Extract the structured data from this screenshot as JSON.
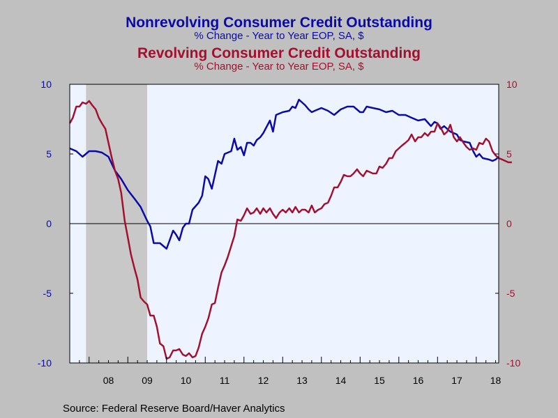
{
  "titles": {
    "series1_title": "Nonrevolving Consumer Credit Outstanding",
    "series1_subtitle": "% Change - Year to Year    EOP, SA, $",
    "series2_title": "Revolving Consumer Credit Outstanding",
    "series2_subtitle": "% Change - Year to Year    EOP, SA, $"
  },
  "source": "Source:  Federal Reserve Board/Haver Analytics",
  "colors": {
    "nonrevolving": "#0a0aa8",
    "revolving": "#a3102f",
    "plot_background": "#eef4ff",
    "recession_shade": "#c8c8c8",
    "page_background": "#c0c0c0"
  },
  "chart_data": {
    "type": "line",
    "x_unit": "year (decimal)",
    "xlim": [
      2007.5,
      2018.58
    ],
    "ylim": [
      -10,
      10
    ],
    "left_yticks": [
      "10",
      "5",
      "0",
      "-5",
      "-10"
    ],
    "right_yticks": [
      "10",
      "5",
      "0",
      "-5",
      "-10"
    ],
    "x_tick_labels": [
      "08",
      "09",
      "10",
      "11",
      "12",
      "13",
      "14",
      "15",
      "16",
      "17",
      "18"
    ],
    "x_tick_positions": [
      2008.5,
      2009.5,
      2010.5,
      2011.5,
      2012.5,
      2013.5,
      2014.5,
      2015.5,
      2016.5,
      2017.5,
      2018.5
    ],
    "recession": [
      2007.92,
      2009.5
    ],
    "zero_line": true,
    "series": [
      {
        "key": "nonrevolving",
        "axis": "left",
        "points": [
          [
            2007.5,
            5.4
          ],
          [
            2007.67,
            5.2
          ],
          [
            2007.83,
            4.8
          ],
          [
            2008.0,
            5.2
          ],
          [
            2008.17,
            5.2
          ],
          [
            2008.33,
            5.1
          ],
          [
            2008.5,
            4.8
          ],
          [
            2008.67,
            3.8
          ],
          [
            2008.83,
            3.2
          ],
          [
            2009.0,
            2.4
          ],
          [
            2009.17,
            1.8
          ],
          [
            2009.33,
            1.2
          ],
          [
            2009.5,
            0.2
          ],
          [
            2009.58,
            -0.2
          ],
          [
            2009.67,
            -1.4
          ],
          [
            2009.83,
            -1.4
          ],
          [
            2010.0,
            -1.8
          ],
          [
            2010.08,
            -1.2
          ],
          [
            2010.17,
            -0.5
          ],
          [
            2010.25,
            -0.8
          ],
          [
            2010.33,
            -1.2
          ],
          [
            2010.42,
            -0.3
          ],
          [
            2010.5,
            0.0
          ],
          [
            2010.58,
            0.0
          ],
          [
            2010.67,
            1.0
          ],
          [
            2010.83,
            1.5
          ],
          [
            2010.92,
            2.0
          ],
          [
            2011.0,
            3.4
          ],
          [
            2011.08,
            3.2
          ],
          [
            2011.17,
            2.5
          ],
          [
            2011.33,
            4.5
          ],
          [
            2011.42,
            4.3
          ],
          [
            2011.5,
            5.0
          ],
          [
            2011.67,
            5.2
          ],
          [
            2011.75,
            6.1
          ],
          [
            2011.83,
            5.3
          ],
          [
            2011.92,
            5.5
          ],
          [
            2012.0,
            4.9
          ],
          [
            2012.08,
            5.8
          ],
          [
            2012.17,
            5.8
          ],
          [
            2012.25,
            5.6
          ],
          [
            2012.33,
            6.0
          ],
          [
            2012.42,
            6.2
          ],
          [
            2012.5,
            6.5
          ],
          [
            2012.67,
            7.4
          ],
          [
            2012.75,
            6.6
          ],
          [
            2012.83,
            7.8
          ],
          [
            2013.0,
            8.0
          ],
          [
            2013.17,
            8.1
          ],
          [
            2013.25,
            8.4
          ],
          [
            2013.33,
            8.3
          ],
          [
            2013.42,
            8.9
          ],
          [
            2013.58,
            8.5
          ],
          [
            2013.67,
            8.2
          ],
          [
            2013.75,
            8.0
          ],
          [
            2013.83,
            8.1
          ],
          [
            2014.0,
            8.3
          ],
          [
            2014.17,
            8.1
          ],
          [
            2014.33,
            7.8
          ],
          [
            2014.5,
            8.2
          ],
          [
            2014.67,
            8.4
          ],
          [
            2014.83,
            8.4
          ],
          [
            2015.0,
            8.0
          ],
          [
            2015.08,
            8.0
          ],
          [
            2015.17,
            8.4
          ],
          [
            2015.33,
            8.3
          ],
          [
            2015.5,
            8.2
          ],
          [
            2015.67,
            8.0
          ],
          [
            2015.83,
            8.1
          ],
          [
            2016.0,
            7.8
          ],
          [
            2016.17,
            7.8
          ],
          [
            2016.33,
            7.6
          ],
          [
            2016.5,
            7.4
          ],
          [
            2016.67,
            7.5
          ],
          [
            2016.83,
            7.0
          ],
          [
            2016.92,
            7.3
          ],
          [
            2017.0,
            7.2
          ],
          [
            2017.08,
            6.8
          ],
          [
            2017.17,
            7.0
          ],
          [
            2017.33,
            6.6
          ],
          [
            2017.5,
            6.4
          ],
          [
            2017.58,
            6.0
          ],
          [
            2017.67,
            5.9
          ],
          [
            2017.83,
            5.8
          ],
          [
            2017.92,
            5.2
          ],
          [
            2018.0,
            4.8
          ],
          [
            2018.08,
            5.0
          ],
          [
            2018.17,
            4.7
          ],
          [
            2018.33,
            4.6
          ],
          [
            2018.42,
            4.5
          ],
          [
            2018.5,
            4.6
          ],
          [
            2018.58,
            4.8
          ]
        ]
      },
      {
        "key": "revolving",
        "axis": "right",
        "points": [
          [
            2007.5,
            7.2
          ],
          [
            2007.58,
            7.6
          ],
          [
            2007.67,
            8.4
          ],
          [
            2007.75,
            8.4
          ],
          [
            2007.83,
            8.7
          ],
          [
            2007.92,
            8.6
          ],
          [
            2008.0,
            8.8
          ],
          [
            2008.08,
            8.5
          ],
          [
            2008.17,
            8.2
          ],
          [
            2008.25,
            7.6
          ],
          [
            2008.33,
            7.2
          ],
          [
            2008.42,
            6.8
          ],
          [
            2008.5,
            5.8
          ],
          [
            2008.58,
            4.8
          ],
          [
            2008.67,
            3.8
          ],
          [
            2008.75,
            3.2
          ],
          [
            2008.83,
            2.2
          ],
          [
            2008.92,
            0.2
          ],
          [
            2009.0,
            -1.0
          ],
          [
            2009.08,
            -2.2
          ],
          [
            2009.17,
            -3.2
          ],
          [
            2009.25,
            -4.0
          ],
          [
            2009.33,
            -5.3
          ],
          [
            2009.42,
            -5.6
          ],
          [
            2009.5,
            -5.8
          ],
          [
            2009.58,
            -6.6
          ],
          [
            2009.67,
            -6.6
          ],
          [
            2009.75,
            -7.4
          ],
          [
            2009.83,
            -8.6
          ],
          [
            2009.92,
            -8.8
          ],
          [
            2010.0,
            -9.7
          ],
          [
            2010.08,
            -9.6
          ],
          [
            2010.17,
            -9.1
          ],
          [
            2010.25,
            -9.1
          ],
          [
            2010.33,
            -9.0
          ],
          [
            2010.42,
            -9.4
          ],
          [
            2010.5,
            -9.5
          ],
          [
            2010.58,
            -9.3
          ],
          [
            2010.67,
            -9.6
          ],
          [
            2010.75,
            -9.5
          ],
          [
            2010.83,
            -8.9
          ],
          [
            2010.92,
            -7.9
          ],
          [
            2011.0,
            -7.4
          ],
          [
            2011.08,
            -6.8
          ],
          [
            2011.17,
            -5.8
          ],
          [
            2011.25,
            -5.7
          ],
          [
            2011.33,
            -4.6
          ],
          [
            2011.42,
            -3.5
          ],
          [
            2011.5,
            -3.0
          ],
          [
            2011.58,
            -2.4
          ],
          [
            2011.67,
            -1.6
          ],
          [
            2011.75,
            -0.9
          ],
          [
            2011.83,
            0.3
          ],
          [
            2011.92,
            0.2
          ],
          [
            2012.0,
            0.6
          ],
          [
            2012.08,
            1.1
          ],
          [
            2012.17,
            0.7
          ],
          [
            2012.25,
            0.8
          ],
          [
            2012.33,
            1.1
          ],
          [
            2012.42,
            0.7
          ],
          [
            2012.5,
            1.1
          ],
          [
            2012.58,
            0.8
          ],
          [
            2012.67,
            1.1
          ],
          [
            2012.75,
            0.7
          ],
          [
            2012.83,
            0.4
          ],
          [
            2012.92,
            0.8
          ],
          [
            2013.0,
            1.0
          ],
          [
            2013.08,
            0.8
          ],
          [
            2013.17,
            1.1
          ],
          [
            2013.25,
            0.8
          ],
          [
            2013.33,
            1.2
          ],
          [
            2013.42,
            0.8
          ],
          [
            2013.5,
            1.0
          ],
          [
            2013.58,
            1.0
          ],
          [
            2013.67,
            0.8
          ],
          [
            2013.75,
            1.3
          ],
          [
            2013.83,
            0.8
          ],
          [
            2013.92,
            1.0
          ],
          [
            2014.0,
            1.1
          ],
          [
            2014.08,
            1.4
          ],
          [
            2014.17,
            1.5
          ],
          [
            2014.25,
            2.0
          ],
          [
            2014.33,
            2.6
          ],
          [
            2014.42,
            2.6
          ],
          [
            2014.5,
            3.0
          ],
          [
            2014.58,
            3.5
          ],
          [
            2014.67,
            3.4
          ],
          [
            2014.75,
            3.4
          ],
          [
            2014.83,
            3.6
          ],
          [
            2014.92,
            3.9
          ],
          [
            2015.0,
            3.6
          ],
          [
            2015.08,
            3.4
          ],
          [
            2015.17,
            3.8
          ],
          [
            2015.25,
            3.7
          ],
          [
            2015.33,
            3.6
          ],
          [
            2015.42,
            3.6
          ],
          [
            2015.5,
            4.1
          ],
          [
            2015.58,
            4.0
          ],
          [
            2015.67,
            4.3
          ],
          [
            2015.75,
            4.7
          ],
          [
            2015.83,
            4.7
          ],
          [
            2015.92,
            5.2
          ],
          [
            2016.0,
            5.4
          ],
          [
            2016.08,
            5.6
          ],
          [
            2016.17,
            5.8
          ],
          [
            2016.25,
            6.0
          ],
          [
            2016.33,
            6.4
          ],
          [
            2016.42,
            5.9
          ],
          [
            2016.5,
            6.2
          ],
          [
            2016.58,
            6.2
          ],
          [
            2016.67,
            6.5
          ],
          [
            2016.75,
            6.3
          ],
          [
            2016.83,
            6.6
          ],
          [
            2016.92,
            6.6
          ],
          [
            2017.0,
            7.2
          ],
          [
            2017.08,
            6.9
          ],
          [
            2017.17,
            6.4
          ],
          [
            2017.25,
            6.6
          ],
          [
            2017.33,
            7.1
          ],
          [
            2017.42,
            6.2
          ],
          [
            2017.5,
            5.9
          ],
          [
            2017.58,
            6.2
          ],
          [
            2017.67,
            5.8
          ],
          [
            2017.75,
            5.5
          ],
          [
            2017.83,
            5.3
          ],
          [
            2017.92,
            5.4
          ],
          [
            2018.0,
            5.3
          ],
          [
            2018.08,
            5.8
          ],
          [
            2018.17,
            5.7
          ],
          [
            2018.25,
            6.1
          ],
          [
            2018.33,
            5.9
          ],
          [
            2018.42,
            5.2
          ],
          [
            2018.5,
            4.9
          ],
          [
            2018.58,
            4.7
          ],
          [
            2018.67,
            4.6
          ],
          [
            2018.75,
            4.5
          ],
          [
            2018.83,
            4.4
          ],
          [
            2018.92,
            4.4
          ]
        ]
      }
    ]
  }
}
